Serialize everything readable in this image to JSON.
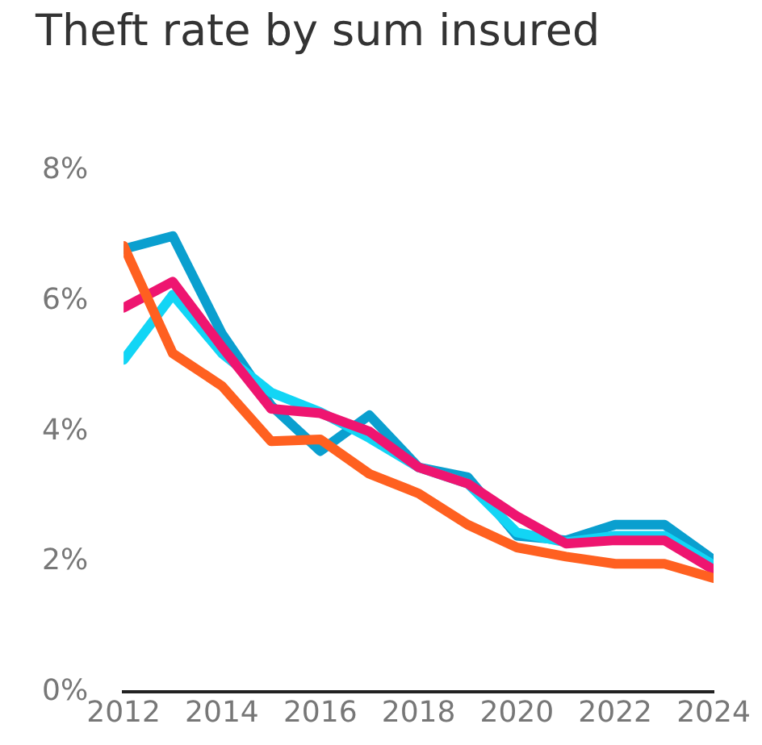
{
  "chart_data": {
    "type": "line",
    "title": "Theft rate by sum insured",
    "x": [
      2012,
      2013,
      2014,
      2015,
      2016,
      2017,
      2018,
      2019,
      2020,
      2021,
      2022,
      2023,
      2024
    ],
    "series": [
      {
        "color": "#0a9fcf",
        "values": [
          6.8,
          7.0,
          5.5,
          4.4,
          3.7,
          4.25,
          3.45,
          3.3,
          2.4,
          2.33,
          2.57,
          2.57,
          2.03
        ]
      },
      {
        "color": "#12d5f5",
        "values": [
          5.1,
          6.1,
          5.2,
          4.6,
          4.3,
          3.9,
          3.45,
          3.2,
          2.45,
          2.3,
          2.4,
          2.4,
          1.95
        ]
      },
      {
        "color": "#ee1570",
        "values": [
          5.9,
          6.3,
          5.3,
          4.35,
          4.28,
          4.0,
          3.45,
          3.2,
          2.7,
          2.28,
          2.33,
          2.33,
          1.88
        ]
      },
      {
        "color": "#ff6020",
        "values": [
          6.85,
          5.2,
          4.7,
          3.85,
          3.88,
          3.35,
          3.05,
          2.57,
          2.22,
          2.08,
          1.97,
          1.97,
          1.75
        ]
      }
    ],
    "xlim": [
      2012,
      2024
    ],
    "xticks": [
      2012,
      2014,
      2016,
      2018,
      2020,
      2022,
      2024
    ],
    "ylim": [
      0,
      8
    ],
    "yticks": [
      {
        "value": 0,
        "label": "0%"
      },
      {
        "value": 2,
        "label": "2%"
      },
      {
        "value": 4,
        "label": "4%"
      },
      {
        "value": 6,
        "label": "6%"
      },
      {
        "value": 8,
        "label": "8%"
      }
    ],
    "grid": false,
    "legend": false,
    "marker": "none",
    "line_style": "solid"
  }
}
